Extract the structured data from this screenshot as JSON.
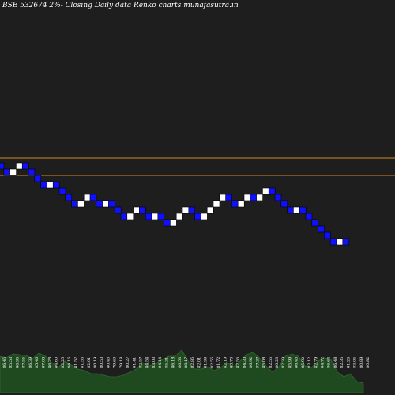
{
  "chart_data": {
    "type": "renko",
    "title": "BSE 532674  2%-  Closing Daily data  Renko  charts munafasutra.in",
    "colors": {
      "background": "#1e1e1e",
      "up_brick": "#ffffff",
      "down_brick": "#1010ff",
      "reference_line": "#d08a20",
      "volume_fill": "#1f4a1f",
      "volume_edge": "#2f6a2f",
      "label": "#ffffff"
    },
    "reference_levels": [
      100.0,
      96.5
    ],
    "brick_sequence": [
      "d",
      "d",
      "u",
      "u",
      "d",
      "d",
      "d",
      "d",
      "u",
      "d",
      "d",
      "d",
      "d",
      "u",
      "u",
      "d",
      "d",
      "u",
      "d",
      "d",
      "d",
      "u",
      "u",
      "d",
      "d",
      "u",
      "d",
      "d",
      "u",
      "u",
      "u",
      "d",
      "d",
      "u",
      "u",
      "u",
      "u",
      "d",
      "d",
      "u",
      "u",
      "d",
      "u",
      "u",
      "d",
      "d",
      "d",
      "d",
      "u",
      "d",
      "d",
      "d",
      "d",
      "d",
      "d",
      "u",
      "d"
    ],
    "volume_labels": [
      "86.45",
      "85.53",
      "86.96",
      "87.55",
      "86.39",
      "85.46",
      "87.08",
      "86.28",
      "84.60",
      "82.25",
      "84.16",
      "81.52",
      "81.53",
      "82.01",
      "80.19",
      "80.50",
      "80.45",
      "79.60",
      "79.18",
      "80.27",
      "81.41",
      "82.57",
      "84.54",
      "83.03",
      "84.14",
      "85.31",
      "86.18",
      "86.53",
      "88.17",
      "82.85",
      "82.01",
      "81.99",
      "82.55",
      "81.72",
      "82.19",
      "83.70",
      "82.55",
      "84.30",
      "86.92",
      "87.37",
      "85.08",
      "82.55",
      "80.23",
      "82.39",
      "85.99",
      "86.43",
      "85.92",
      "83.12",
      "82.79",
      "84.72",
      "86.64",
      "86.48",
      "82.35",
      "81.26",
      "83.05",
      "80.89",
      "80.82"
    ],
    "volume_values": [
      46,
      44,
      49,
      48,
      47,
      43,
      50,
      46,
      38,
      32,
      40,
      35,
      30,
      28,
      24,
      24,
      22,
      20,
      20,
      22,
      26,
      30,
      38,
      34,
      37,
      42,
      46,
      46,
      54,
      40,
      30,
      30,
      33,
      28,
      32,
      38,
      33,
      40,
      48,
      51,
      44,
      34,
      26,
      33,
      46,
      49,
      46,
      34,
      32,
      40,
      44,
      42,
      26,
      20,
      24,
      14,
      12
    ]
  }
}
